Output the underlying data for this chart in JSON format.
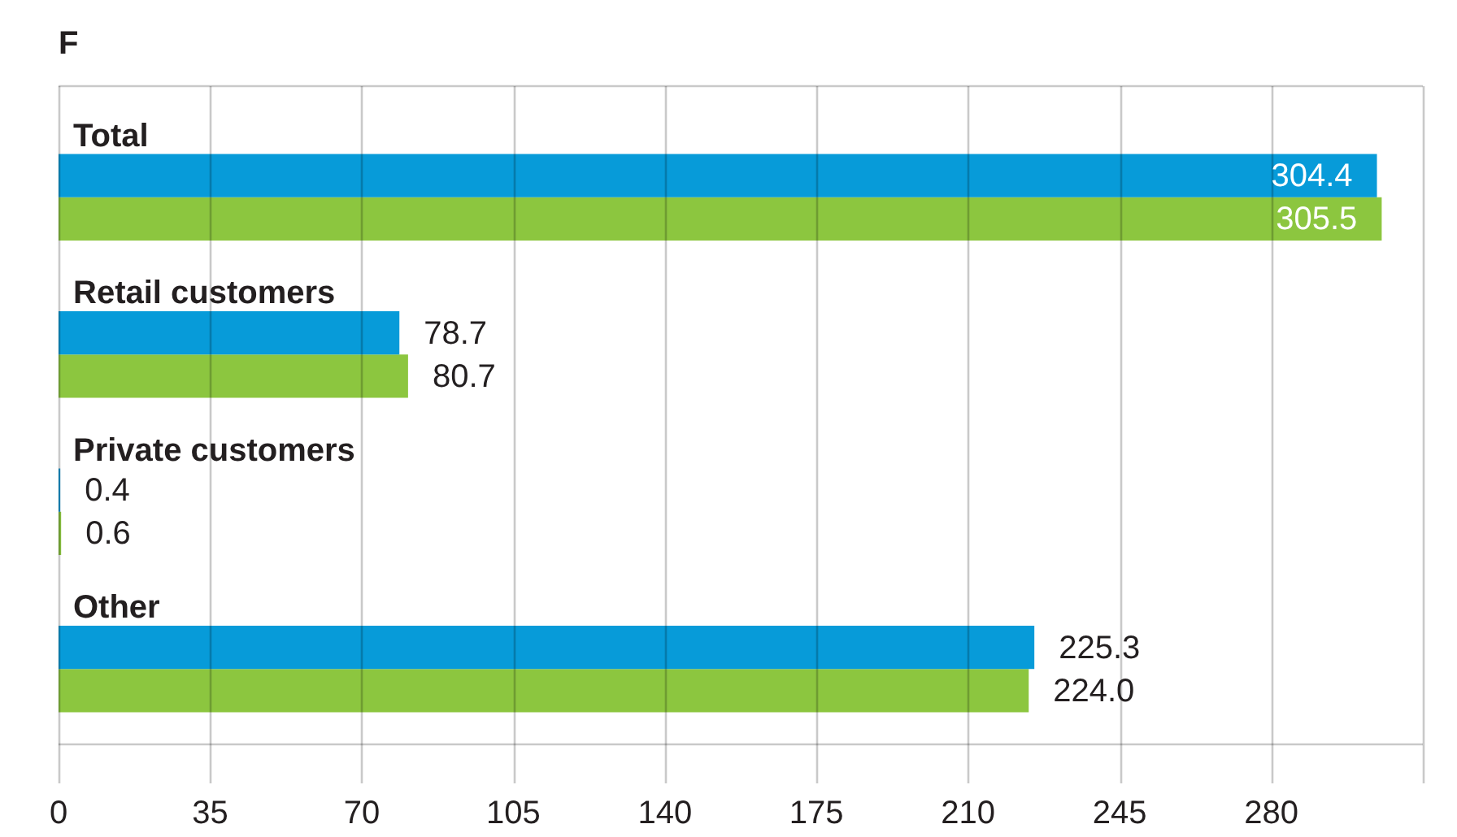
{
  "chart_data": {
    "type": "bar",
    "orientation": "horizontal",
    "title": "F",
    "categories": [
      "Total",
      "Retail customers",
      "Private customers",
      "Other"
    ],
    "series": [
      {
        "color": "#079bd9",
        "values": [
          304.4,
          78.7,
          0.4,
          225.3
        ],
        "value_labels": [
          "304.4",
          "78.7",
          "0.4",
          "225.3"
        ]
      },
      {
        "color": "#8cc63f",
        "values": [
          305.5,
          80.7,
          0.6,
          224.0
        ],
        "value_labels": [
          "305.5",
          "80.7",
          "0.6",
          "224.0"
        ]
      }
    ],
    "xlim": [
      0,
      315
    ],
    "xticks": [
      0,
      35,
      70,
      105,
      140,
      175,
      210,
      245,
      280,
      {
        "value": 315,
        "label": null
      }
    ],
    "grid": "x"
  }
}
